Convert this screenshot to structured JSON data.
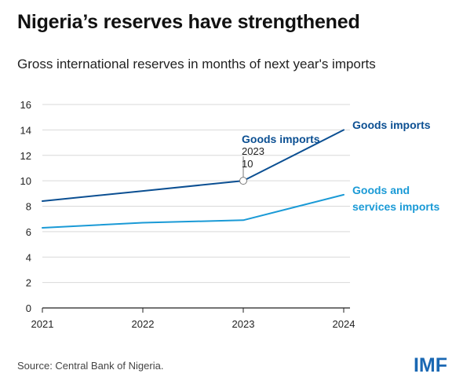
{
  "header": {
    "title": "Nigeria’s reserves have strengthened",
    "subtitle": "Gross international reserves in months of next year's imports"
  },
  "footer": {
    "source": "Source: Central Bank of Nigeria.",
    "logo": "IMF"
  },
  "colors": {
    "goods": "#0b4f92",
    "goods_services": "#1a9ad6",
    "axis": "#222222",
    "grid": "#d9d9d9",
    "logo": "#1a68b3"
  },
  "chart_data": {
    "type": "line",
    "title": "Nigeria’s reserves have strengthened",
    "subtitle": "Gross international reserves in months of next year's imports",
    "x": [
      "2021",
      "2022",
      "2023",
      "2024"
    ],
    "ylim": [
      0,
      16
    ],
    "yticks": [
      0,
      2,
      4,
      6,
      8,
      10,
      12,
      14,
      16
    ],
    "grid": true,
    "series": [
      {
        "name": "Goods imports",
        "values": [
          8.4,
          9.2,
          10,
          14
        ],
        "color": "#0b4f92"
      },
      {
        "name": "Goods and services imports",
        "values": [
          6.3,
          6.7,
          6.9,
          8.9
        ],
        "color": "#1a9ad6"
      }
    ],
    "annotation": {
      "series": "Goods imports",
      "label": "Goods imports",
      "year": "2023",
      "value": "10"
    },
    "legend_placement": "right"
  }
}
